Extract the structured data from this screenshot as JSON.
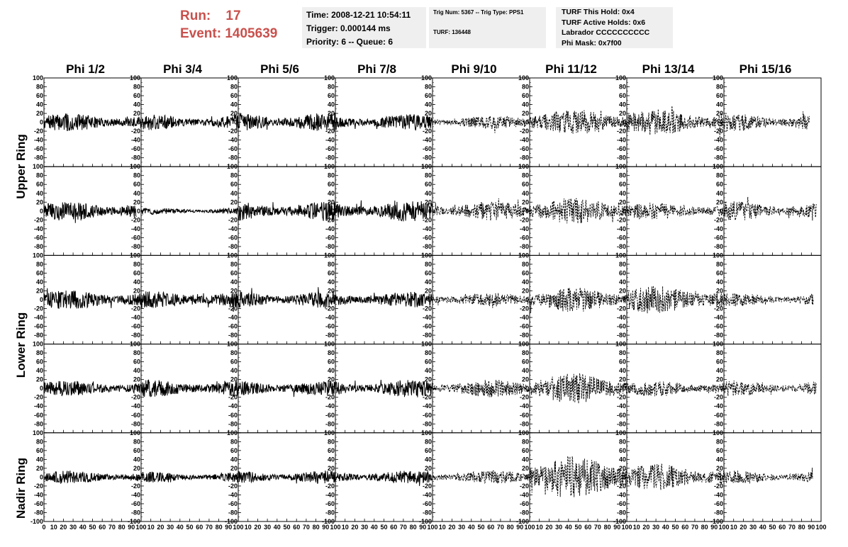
{
  "header": {
    "run_label": "Run:",
    "run_value": "17",
    "event_label": "Event:",
    "event_value": "1405639",
    "time": "Time: 2008-12-21 10:54:11",
    "trigger": "Trigger: 0.000144 ms",
    "priority": "Priority: 6 -- Queue: 6",
    "trig_num": "Trig Num: 5367 -- Trig Type: PPS1",
    "turf": "TURF: 136448",
    "turf_hold": "TURF This Hold: 0x4",
    "turf_active": "TURF Active Holds: 0x6",
    "labrador": "Labrador CCCCCCCCCC",
    "phi_mask": "Phi Mask: 0x7f00"
  },
  "columns": [
    "Phi 1/2",
    "Phi 3/4",
    "Phi 5/6",
    "Phi 7/8",
    "Phi 9/10",
    "Phi 11/12",
    "Phi 13/14",
    "Phi 15/16"
  ],
  "rows": [
    "Upper Ring",
    "Lower Ring",
    "Nadir Ring"
  ],
  "chart_data": {
    "type": "line",
    "description_grid": "5 waveform rows by 8 phi-sector columns; Upper Ring spans 2 rows, Lower Ring spans 2 rows, Nadir Ring 1 row",
    "xlim": [
      0,
      100
    ],
    "x_ticks": [
      0,
      10,
      20,
      30,
      40,
      50,
      60,
      70,
      80,
      90,
      100
    ],
    "ylim": [
      -100,
      100
    ],
    "y_ticks": [
      -100,
      -80,
      -60,
      -40,
      -20,
      0,
      20,
      40,
      60,
      80,
      100
    ],
    "masked_columns": [
      4,
      5,
      6,
      7
    ],
    "line_style_masked": "dashed",
    "line_style_normal": "solid",
    "approx_amplitude": [
      [
        20,
        18,
        22,
        18,
        15,
        30,
        30,
        20
      ],
      [
        22,
        8,
        22,
        24,
        22,
        30,
        20,
        22
      ],
      [
        22,
        20,
        20,
        18,
        16,
        28,
        32,
        15
      ],
      [
        18,
        20,
        18,
        20,
        20,
        35,
        18,
        18
      ],
      [
        15,
        12,
        15,
        15,
        15,
        50,
        30,
        15
      ]
    ],
    "trace_end_x": [
      [
        100,
        100,
        100,
        100,
        100,
        100,
        100,
        88
      ],
      [
        95,
        100,
        100,
        100,
        100,
        100,
        100,
        95
      ],
      [
        100,
        100,
        100,
        100,
        100,
        100,
        100,
        92
      ],
      [
        100,
        100,
        100,
        100,
        100,
        100,
        100,
        95
      ],
      [
        100,
        100,
        100,
        100,
        100,
        100,
        100,
        92
      ]
    ]
  }
}
